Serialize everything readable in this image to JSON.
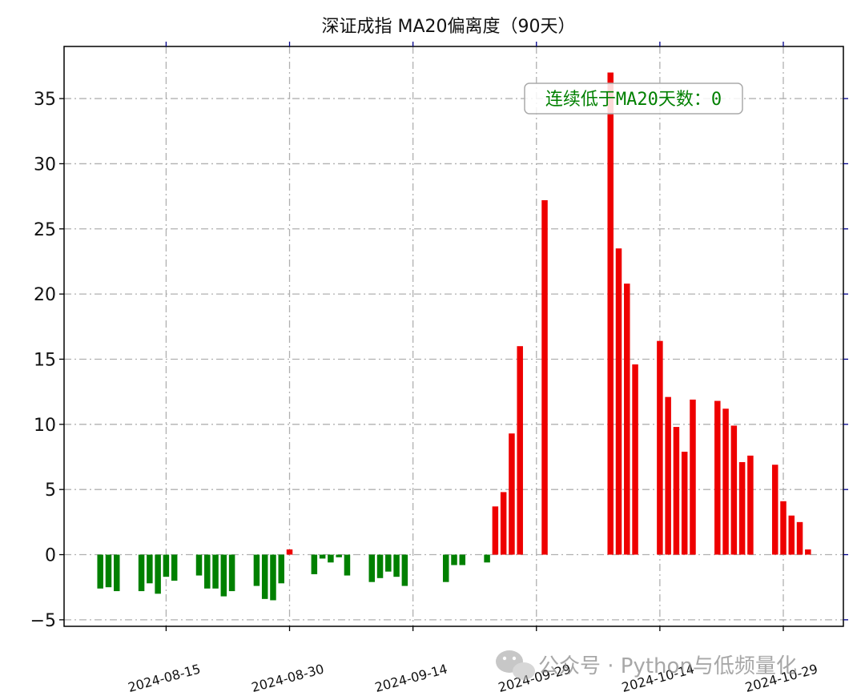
{
  "chart_data": {
    "type": "bar",
    "title": "深证成指 MA20偏离度（90天）",
    "xlabel": "",
    "ylabel": "",
    "ylim": [
      -5.5,
      39
    ],
    "y_ticks": [
      -5,
      0,
      5,
      10,
      15,
      20,
      25,
      30,
      35
    ],
    "y_tick_labels": [
      "−5",
      "0",
      "5",
      "10",
      "15",
      "20",
      "25",
      "30",
      "35"
    ],
    "x_ticks": [
      "2024-08-15",
      "2024-08-30",
      "2024-09-14",
      "2024-09-29",
      "2024-10-14",
      "2024-10-29"
    ],
    "x_tick_labels": [
      "2024-08-15",
      "2024-08-30",
      "2024-09-14",
      "2024-09-29",
      "2024-10-14",
      "2024-10-29"
    ],
    "grid": true,
    "positive_color": "#ee0000",
    "negative_color": "#008000",
    "annotation": {
      "text": "连续低于MA20天数：0",
      "color": "#008000",
      "placement": "top-right"
    },
    "series": [
      {
        "values": [
          [
            "2024-08-07",
            -2.6
          ],
          [
            "2024-08-08",
            -2.5
          ],
          [
            "2024-08-09",
            -2.8
          ],
          [
            "2024-08-12",
            -2.8
          ],
          [
            "2024-08-13",
            -2.2
          ],
          [
            "2024-08-14",
            -3.0
          ],
          [
            "2024-08-15",
            -1.7
          ],
          [
            "2024-08-16",
            -2.0
          ],
          [
            "2024-08-19",
            -1.6
          ],
          [
            "2024-08-20",
            -2.6
          ],
          [
            "2024-08-21",
            -2.6
          ],
          [
            "2024-08-22",
            -3.2
          ],
          [
            "2024-08-23",
            -2.8
          ],
          [
            "2024-08-26",
            -2.4
          ],
          [
            "2024-08-27",
            -3.4
          ],
          [
            "2024-08-28",
            -3.5
          ],
          [
            "2024-08-29",
            -2.2
          ],
          [
            "2024-08-30",
            0.4
          ],
          [
            "2024-09-02",
            -1.5
          ],
          [
            "2024-09-03",
            -0.3
          ],
          [
            "2024-09-04",
            -0.6
          ],
          [
            "2024-09-05",
            -0.2
          ],
          [
            "2024-09-06",
            -1.6
          ],
          [
            "2024-09-09",
            -2.1
          ],
          [
            "2024-09-10",
            -1.8
          ],
          [
            "2024-09-11",
            -1.3
          ],
          [
            "2024-09-12",
            -1.7
          ],
          [
            "2024-09-13",
            -2.4
          ],
          [
            "2024-09-18",
            -2.1
          ],
          [
            "2024-09-19",
            -0.8
          ],
          [
            "2024-09-20",
            -0.8
          ],
          [
            "2024-09-23",
            -0.6
          ],
          [
            "2024-09-24",
            3.7
          ],
          [
            "2024-09-25",
            4.8
          ],
          [
            "2024-09-26",
            9.3
          ],
          [
            "2024-09-27",
            16.0
          ],
          [
            "2024-09-30",
            27.2
          ],
          [
            "2024-10-08",
            37.0
          ],
          [
            "2024-10-09",
            23.5
          ],
          [
            "2024-10-10",
            20.8
          ],
          [
            "2024-10-11",
            14.6
          ],
          [
            "2024-10-14",
            16.4
          ],
          [
            "2024-10-15",
            12.1
          ],
          [
            "2024-10-16",
            9.8
          ],
          [
            "2024-10-17",
            7.9
          ],
          [
            "2024-10-18",
            11.9
          ],
          [
            "2024-10-21",
            11.8
          ],
          [
            "2024-10-22",
            11.2
          ],
          [
            "2024-10-23",
            9.9
          ],
          [
            "2024-10-24",
            7.1
          ],
          [
            "2024-10-25",
            7.6
          ],
          [
            "2024-10-28",
            6.9
          ],
          [
            "2024-10-29",
            4.1
          ],
          [
            "2024-10-30",
            3.0
          ],
          [
            "2024-10-31",
            2.5
          ],
          [
            "2024-11-01",
            0.4
          ]
        ]
      }
    ]
  },
  "watermark": {
    "text": "公众号 · Python与低频量化",
    "icon": "wechat-icon"
  }
}
